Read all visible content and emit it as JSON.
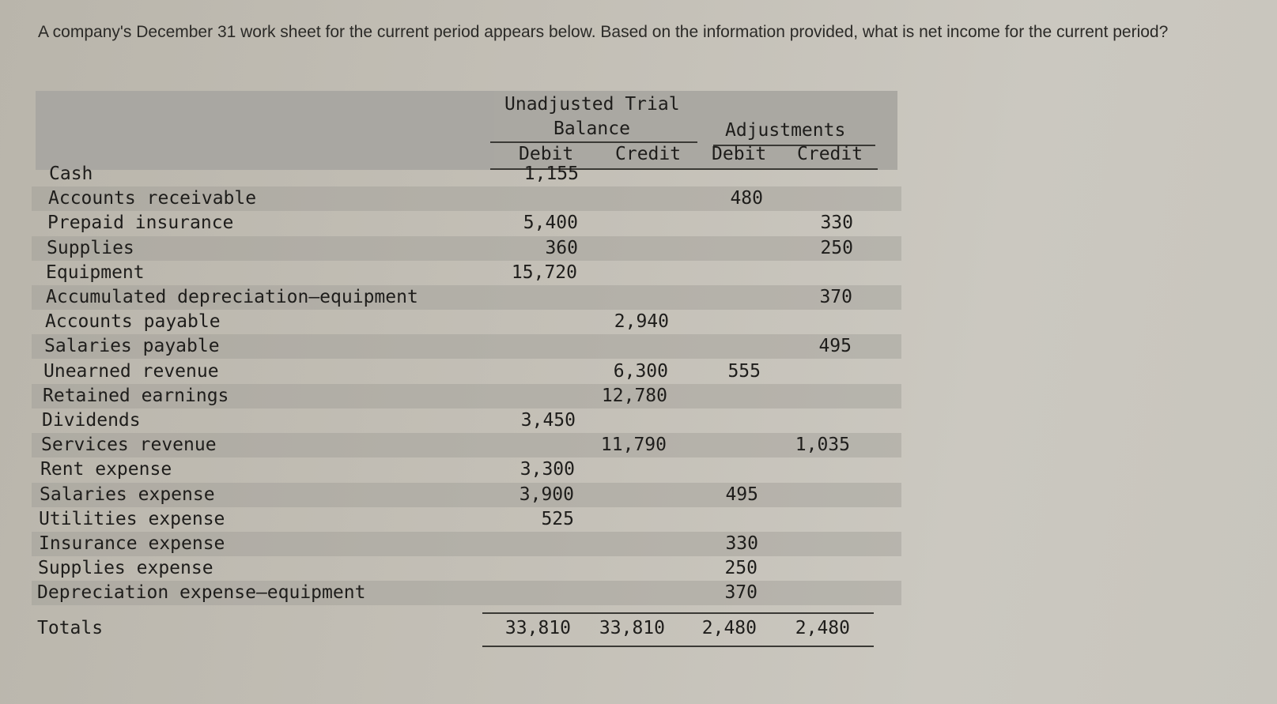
{
  "question": "A company's December 31 work sheet for the current period appears below. Based on the information provided, what is net income for the current period?",
  "table": {
    "header": {
      "group1": "Unadjusted Trial Balance",
      "group1_line1": "Unadjusted Trial",
      "group1_line2": "Balance",
      "group2": "Adjustments",
      "debit": "Debit",
      "credit": "Credit"
    },
    "rows": [
      {
        "label": "Cash",
        "utb_debit": "1,155",
        "utb_credit": "",
        "adj_debit": "",
        "adj_credit": ""
      },
      {
        "label": "Accounts receivable",
        "utb_debit": "",
        "utb_credit": "",
        "adj_debit": "480",
        "adj_credit": ""
      },
      {
        "label": "Prepaid insurance",
        "utb_debit": "5,400",
        "utb_credit": "",
        "adj_debit": "",
        "adj_credit": "330"
      },
      {
        "label": "Supplies",
        "utb_debit": "360",
        "utb_credit": "",
        "adj_debit": "",
        "adj_credit": "250"
      },
      {
        "label": "Equipment",
        "utb_debit": "15,720",
        "utb_credit": "",
        "adj_debit": "",
        "adj_credit": ""
      },
      {
        "label": "Accumulated depreciation—equipment",
        "utb_debit": "",
        "utb_credit": "",
        "adj_debit": "",
        "adj_credit": "370"
      },
      {
        "label": "Accounts payable",
        "utb_debit": "",
        "utb_credit": "2,940",
        "adj_debit": "",
        "adj_credit": ""
      },
      {
        "label": "Salaries payable",
        "utb_debit": "",
        "utb_credit": "",
        "adj_debit": "",
        "adj_credit": "495"
      },
      {
        "label": "Unearned revenue",
        "utb_debit": "",
        "utb_credit": "6,300",
        "adj_debit": "555",
        "adj_credit": ""
      },
      {
        "label": "Retained earnings",
        "utb_debit": "",
        "utb_credit": "12,780",
        "adj_debit": "",
        "adj_credit": ""
      },
      {
        "label": "Dividends",
        "utb_debit": "3,450",
        "utb_credit": "",
        "adj_debit": "",
        "adj_credit": ""
      },
      {
        "label": "Services revenue",
        "utb_debit": "",
        "utb_credit": "11,790",
        "adj_debit": "",
        "adj_credit": "1,035"
      },
      {
        "label": "Rent expense",
        "utb_debit": "3,300",
        "utb_credit": "",
        "adj_debit": "",
        "adj_credit": ""
      },
      {
        "label": "Salaries expense",
        "utb_debit": "3,900",
        "utb_credit": "",
        "adj_debit": "495",
        "adj_credit": ""
      },
      {
        "label": "Utilities expense",
        "utb_debit": "525",
        "utb_credit": "",
        "adj_debit": "",
        "adj_credit": ""
      },
      {
        "label": "Insurance expense",
        "utb_debit": "",
        "utb_credit": "",
        "adj_debit": "330",
        "adj_credit": ""
      },
      {
        "label": "Supplies expense",
        "utb_debit": "",
        "utb_credit": "",
        "adj_debit": "250",
        "adj_credit": ""
      },
      {
        "label": "Depreciation expense—equipment",
        "utb_debit": "",
        "utb_credit": "",
        "adj_debit": "370",
        "adj_credit": ""
      }
    ],
    "totals": {
      "label": "Totals",
      "utb_debit": "33,810",
      "utb_credit": "33,810",
      "adj_debit": "2,480",
      "adj_credit": "2,480"
    }
  }
}
